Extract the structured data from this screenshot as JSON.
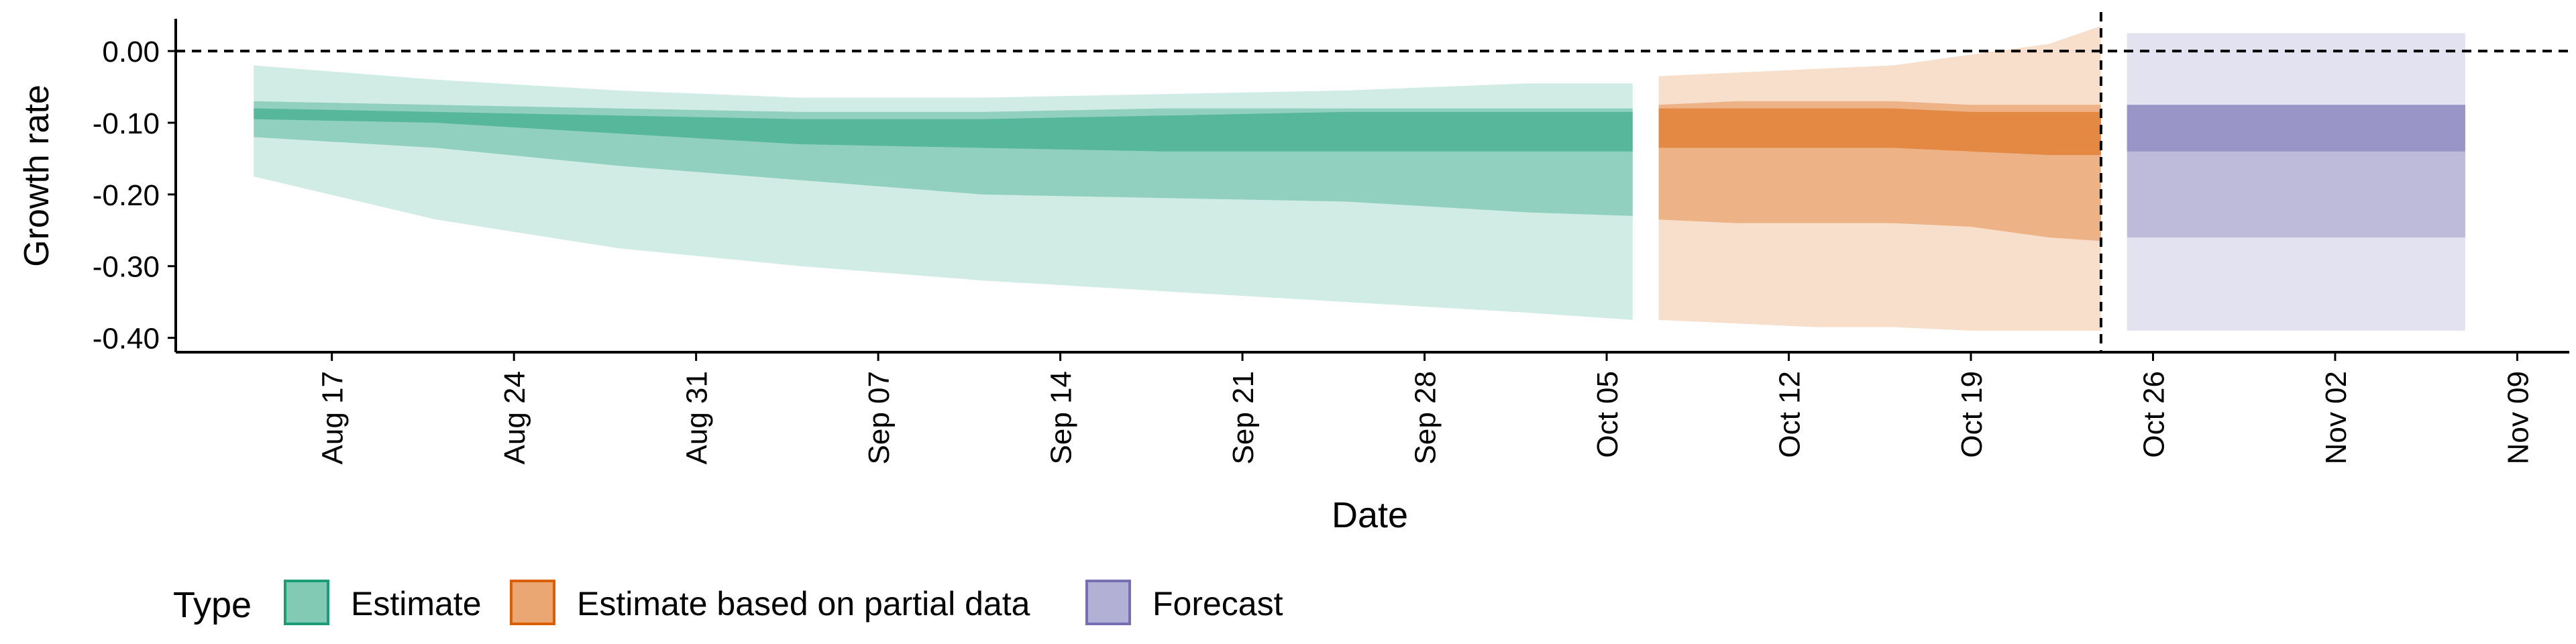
{
  "chart_data": {
    "type": "area",
    "xlabel": "Date",
    "ylabel": "Growth rate",
    "ylim": [
      -0.42,
      0.045
    ],
    "x_range": [
      "2020-08-11",
      "2020-11-11"
    ],
    "y_ticks": [
      0.0,
      -0.1,
      -0.2,
      -0.3,
      -0.4
    ],
    "y_tick_labels": [
      "0.00",
      "-0.10",
      "-0.20",
      "-0.30",
      "-0.40"
    ],
    "x_ticks": [
      "2020-08-17",
      "2020-08-24",
      "2020-08-31",
      "2020-09-07",
      "2020-09-14",
      "2020-09-21",
      "2020-09-28",
      "2020-10-05",
      "2020-10-12",
      "2020-10-19",
      "2020-10-26",
      "2020-11-02",
      "2020-11-09"
    ],
    "x_tick_labels": [
      "Aug 17",
      "Aug 24",
      "Aug 31",
      "Sep 07",
      "Sep 14",
      "Sep 21",
      "Sep 28",
      "Oct 05",
      "Oct 12",
      "Oct 19",
      "Oct 26",
      "Nov 02",
      "Nov 09"
    ],
    "reference_hline": 0.0,
    "reference_vline": "2020-10-24",
    "grid": false,
    "legend": {
      "title": "Type",
      "position": "bottom-left",
      "entries": [
        {
          "label": "Estimate",
          "color": "#1b9e77"
        },
        {
          "label": "Estimate based on partial data",
          "color": "#d95f02"
        },
        {
          "label": "Forecast",
          "color": "#7570b3"
        }
      ]
    },
    "series": [
      {
        "name": "Estimate",
        "color": "#1b9e77",
        "x": [
          "2020-08-14",
          "2020-08-21",
          "2020-08-28",
          "2020-09-04",
          "2020-09-11",
          "2020-09-18",
          "2020-09-25",
          "2020-10-02",
          "2020-10-06"
        ],
        "lower_90": [
          -0.175,
          -0.235,
          -0.275,
          -0.3,
          -0.32,
          -0.335,
          -0.35,
          -0.365,
          -0.375
        ],
        "upper_90": [
          -0.02,
          -0.04,
          -0.055,
          -0.065,
          -0.065,
          -0.06,
          -0.055,
          -0.045,
          -0.045
        ],
        "lower_50": [
          -0.12,
          -0.135,
          -0.16,
          -0.18,
          -0.2,
          -0.205,
          -0.21,
          -0.225,
          -0.23
        ],
        "upper_50": [
          -0.07,
          -0.075,
          -0.08,
          -0.085,
          -0.085,
          -0.08,
          -0.08,
          -0.08,
          -0.08
        ],
        "lower_20": [
          -0.095,
          -0.1,
          -0.115,
          -0.13,
          -0.135,
          -0.14,
          -0.14,
          -0.14,
          -0.14
        ],
        "upper_20": [
          -0.08,
          -0.085,
          -0.09,
          -0.095,
          -0.095,
          -0.09,
          -0.085,
          -0.085,
          -0.085
        ]
      },
      {
        "name": "Estimate based on partial data",
        "color": "#d95f02",
        "x": [
          "2020-10-07",
          "2020-10-10",
          "2020-10-13",
          "2020-10-16",
          "2020-10-19",
          "2020-10-22",
          "2020-10-24"
        ],
        "lower_90": [
          -0.375,
          -0.38,
          -0.385,
          -0.385,
          -0.39,
          -0.39,
          -0.39
        ],
        "upper_90": [
          -0.035,
          -0.03,
          -0.025,
          -0.02,
          -0.005,
          0.01,
          0.035
        ],
        "lower_50": [
          -0.235,
          -0.24,
          -0.24,
          -0.24,
          -0.245,
          -0.26,
          -0.265
        ],
        "upper_50": [
          -0.075,
          -0.07,
          -0.07,
          -0.07,
          -0.075,
          -0.075,
          -0.075
        ],
        "lower_20": [
          -0.135,
          -0.135,
          -0.135,
          -0.135,
          -0.14,
          -0.145,
          -0.145
        ],
        "upper_20": [
          -0.08,
          -0.08,
          -0.08,
          -0.08,
          -0.085,
          -0.085,
          -0.085
        ]
      },
      {
        "name": "Forecast",
        "color": "#7570b3",
        "x": [
          "2020-10-25",
          "2020-11-07"
        ],
        "lower_90": [
          -0.39,
          -0.39
        ],
        "upper_90": [
          0.025,
          0.025
        ],
        "lower_50": [
          -0.26,
          -0.26
        ],
        "upper_50": [
          -0.075,
          -0.075
        ],
        "lower_20": [
          -0.14,
          -0.14
        ],
        "upper_20": [
          -0.075,
          -0.075
        ]
      }
    ]
  }
}
